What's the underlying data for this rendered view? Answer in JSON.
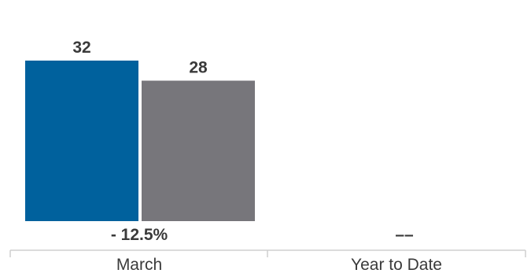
{
  "chart_data": {
    "type": "bar",
    "categories": [
      "March",
      "Year to Date"
    ],
    "series": [
      {
        "values": [
          32,
          null
        ],
        "color": "#00619d"
      },
      {
        "values": [
          28,
          null
        ],
        "color": "#77767b"
      }
    ],
    "change_labels": [
      "- 12.5%",
      "––"
    ],
    "ylim": [
      0,
      35
    ],
    "grid": false,
    "legend": "none"
  }
}
